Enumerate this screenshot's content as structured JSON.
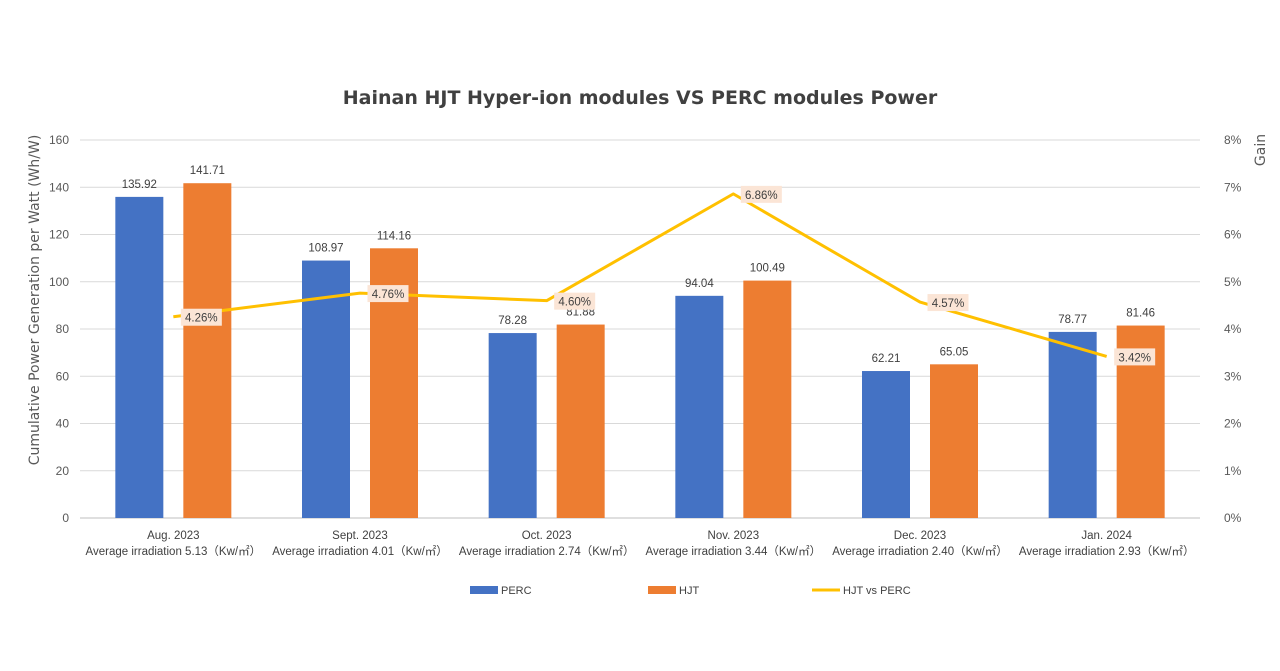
{
  "chart_data": {
    "type": "bar",
    "title": "Hainan HJT Hyper-ion modules VS PERC modules Power",
    "ylabel": "Cumulative Power Generation per Watt (Wh/W)",
    "y2label": "Gain",
    "ylim": [
      0,
      160
    ],
    "y2lim": [
      0,
      8
    ],
    "y_ticks": [
      "0",
      "20",
      "40",
      "60",
      "80",
      "100",
      "120",
      "140",
      "160"
    ],
    "y2_ticks": [
      "0%",
      "1%",
      "2%",
      "3%",
      "4%",
      "5%",
      "6%",
      "7%",
      "8%"
    ],
    "grid": true,
    "legend_position": "bottom",
    "categories": [
      {
        "line1": "Aug. 2023",
        "line2": "Average irradiation 5.13（Kw/㎡）"
      },
      {
        "line1": "Sept. 2023",
        "line2": "Average irradiation 4.01（Kw/㎡）"
      },
      {
        "line1": "Oct. 2023",
        "line2": "Average irradiation 2.74（Kw/㎡）"
      },
      {
        "line1": "Nov. 2023",
        "line2": "Average irradiation 3.44（Kw/㎡）"
      },
      {
        "line1": "Dec. 2023",
        "line2": "Average irradiation 2.40（Kw/㎡）"
      },
      {
        "line1": "Jan. 2024",
        "line2": "Average irradiation 2.93（Kw/㎡）"
      }
    ],
    "series": [
      {
        "name": "PERC",
        "type": "bar",
        "color": "#4472C4",
        "values": [
          135.92,
          108.97,
          78.28,
          94.04,
          62.21,
          78.77
        ],
        "labels": [
          "135.92",
          "108.97",
          "78.28",
          "94.04",
          "62.21",
          "78.77"
        ]
      },
      {
        "name": "HJT",
        "type": "bar",
        "color": "#ED7D31",
        "values": [
          141.71,
          114.16,
          81.88,
          100.49,
          65.05,
          81.46
        ],
        "labels": [
          "141.71",
          "114.16",
          "81.88",
          "100.49",
          "65.05",
          "81.46"
        ]
      },
      {
        "name": "HJT vs PERC",
        "type": "line",
        "axis": "right",
        "color": "#FFC000",
        "values": [
          4.26,
          4.76,
          4.6,
          6.86,
          4.57,
          3.42
        ],
        "labels": [
          "4.26%",
          "4.76%",
          "4.60%",
          "6.86%",
          "4.57%",
          "3.42%"
        ]
      }
    ]
  }
}
